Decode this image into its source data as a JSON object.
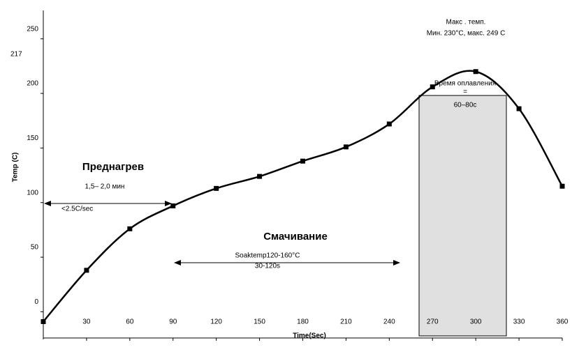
{
  "chart_data": {
    "type": "line",
    "ylabel": "Temp (C)",
    "xlabel": "Time(Sec)",
    "x": [
      0,
      30,
      60,
      90,
      120,
      150,
      180,
      210,
      240,
      270,
      300,
      330,
      360
    ],
    "series": [
      {
        "name": "Temp",
        "color": "#000000",
        "values": [
          -9,
          38,
          76,
          97,
          113,
          124,
          138,
          151,
          172,
          206,
          220,
          186,
          115
        ]
      }
    ],
    "xlim": [
      0,
      360
    ],
    "xticks": [
      30,
      60,
      90,
      120,
      150,
      180,
      210,
      240,
      270,
      300,
      330,
      360
    ],
    "ylim": [
      -24,
      276
    ],
    "yticks": [
      0,
      50,
      100,
      150,
      200,
      250
    ],
    "annotations": {
      "temp217": "217",
      "peak1": "Макс . темп.",
      "peak2": "Мин. 230°C, макс. 249 C",
      "reflow1": "Время оплавления",
      "reflow2": "=",
      "reflow3": "60–80c",
      "preheat": "Преднагрев",
      "preheatTime": "1,5– 2,0 мин",
      "rate": "<2.5C/sec",
      "soak": "Смачивание",
      "soak1": "Soaktemp120-160°C",
      "soak2": "30-120s"
    }
  }
}
